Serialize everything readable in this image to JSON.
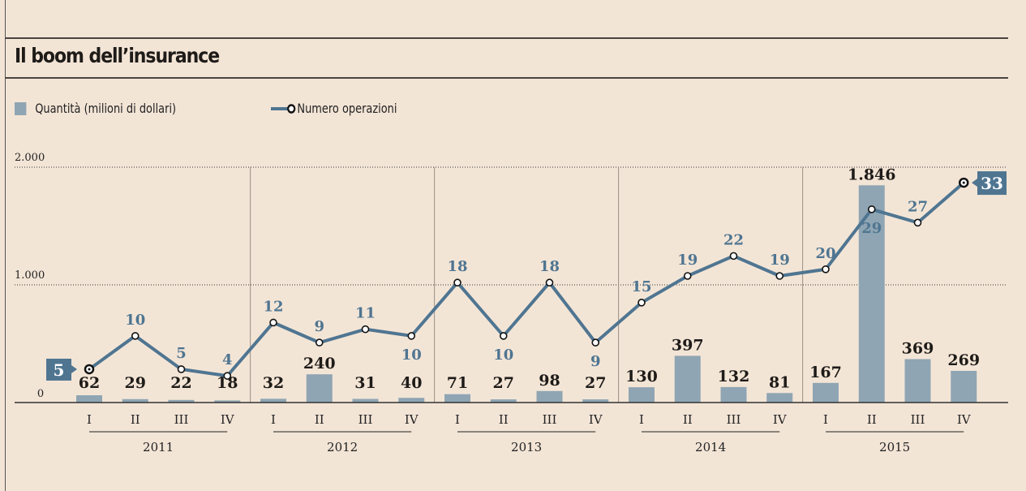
{
  "title": "Il boom dell’insurance",
  "legend": {
    "bars": "Quantità (milioni di dollari)",
    "line": "Numero operazioni"
  },
  "colors": {
    "background": "#f3e5d6",
    "bars": "#8fa5b3",
    "line": "#4f7591",
    "text": "#1e1b18"
  },
  "chart_data": {
    "type": "bar+line",
    "title": "Il boom dell’insurance",
    "years": [
      "2011",
      "2012",
      "2013",
      "2014",
      "2015"
    ],
    "categories": [
      "I",
      "II",
      "III",
      "IV",
      "I",
      "II",
      "III",
      "IV",
      "I",
      "II",
      "III",
      "IV",
      "I",
      "II",
      "III",
      "IV",
      "I",
      "II",
      "III",
      "IV"
    ],
    "series": [
      {
        "name": "Quantità (milioni di dollari)",
        "type": "bar",
        "values": [
          62,
          29,
          22,
          18,
          32,
          240,
          31,
          40,
          71,
          27,
          98,
          27,
          130,
          397,
          132,
          81,
          167,
          1846,
          369,
          269
        ],
        "labels": [
          "62",
          "29",
          "22",
          "18",
          "32",
          "240",
          "31",
          "40",
          "71",
          "27",
          "98",
          "27",
          "130",
          "397",
          "132",
          "81",
          "167",
          "1.846",
          "369",
          "269"
        ]
      },
      {
        "name": "Numero operazioni",
        "type": "line",
        "values": [
          5,
          10,
          5,
          4,
          12,
          9,
          11,
          10,
          18,
          10,
          18,
          9,
          15,
          19,
          22,
          19,
          20,
          29,
          27,
          33
        ]
      }
    ],
    "yticks": [
      {
        "value": 0,
        "label": "0"
      },
      {
        "value": 1000,
        "label": "1.000"
      },
      {
        "value": 2000,
        "label": "2.000"
      }
    ],
    "ylim": [
      0,
      2000
    ],
    "grid": true,
    "legend_position": "top-left"
  }
}
